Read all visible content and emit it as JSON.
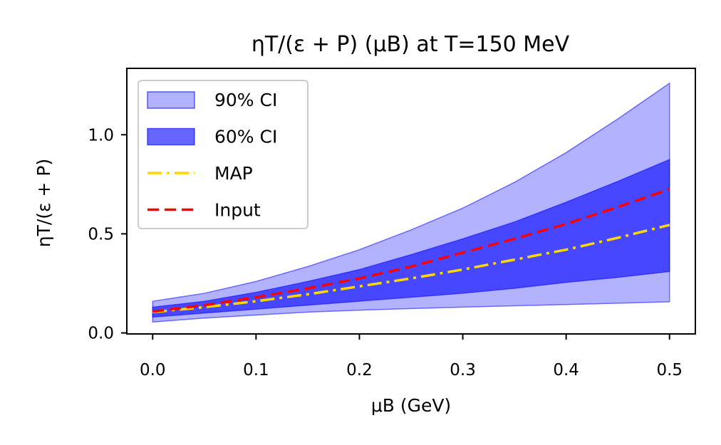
{
  "chart_data": {
    "type": "area",
    "title": "ηT/(ε + P) (μB) at T=150 MeV",
    "xlabel": "μB (GeV)",
    "ylabel": "ηT/(ε + P)",
    "xlim": [
      -0.025,
      0.525
    ],
    "ylim": [
      -0.005,
      1.335
    ],
    "xticks": [
      "0.0",
      "0.1",
      "0.2",
      "0.3",
      "0.4",
      "0.5"
    ],
    "yticks": [
      "0.0",
      "0.5",
      "1.0"
    ],
    "legend_position": "top-left",
    "grid": false,
    "x": [
      0.0,
      0.05,
      0.1,
      0.15,
      0.2,
      0.25,
      0.3,
      0.35,
      0.4,
      0.45,
      0.5
    ],
    "bands": [
      {
        "name": "90% CI",
        "color": "#0000ff",
        "opacity": 0.3,
        "lower": [
          0.055,
          0.075,
          0.09,
          0.105,
          0.115,
          0.123,
          0.13,
          0.137,
          0.143,
          0.15,
          0.157
        ],
        "upper": [
          0.16,
          0.2,
          0.26,
          0.335,
          0.42,
          0.52,
          0.63,
          0.76,
          0.91,
          1.08,
          1.26
        ]
      },
      {
        "name": "60% CI",
        "color": "#0000ff",
        "opacity": 0.6,
        "lower": [
          0.08,
          0.1,
          0.12,
          0.14,
          0.16,
          0.18,
          0.2,
          0.225,
          0.255,
          0.28,
          0.31
        ],
        "upper": [
          0.13,
          0.16,
          0.205,
          0.26,
          0.32,
          0.395,
          0.475,
          0.56,
          0.66,
          0.765,
          0.875
        ]
      }
    ],
    "series": [
      {
        "name": "MAP",
        "color": "#ffd700",
        "style": "dashdot",
        "values": [
          0.105,
          0.13,
          0.16,
          0.195,
          0.235,
          0.275,
          0.32,
          0.37,
          0.42,
          0.48,
          0.545
        ]
      },
      {
        "name": "Input",
        "color": "#ff0000",
        "style": "dashed",
        "values": [
          0.108,
          0.14,
          0.18,
          0.225,
          0.275,
          0.335,
          0.405,
          0.475,
          0.55,
          0.635,
          0.725
        ]
      }
    ]
  }
}
